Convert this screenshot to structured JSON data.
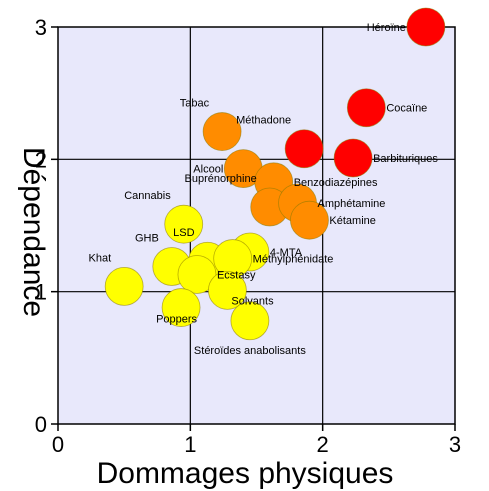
{
  "chart_data": {
    "type": "scatter",
    "xlabel": "Dommages physiques",
    "ylabel": "Dépendance",
    "xlim": [
      0,
      3
    ],
    "ylim": [
      0,
      3
    ],
    "xticks": [
      "0",
      "1",
      "2",
      "3"
    ],
    "yticks": [
      "0",
      "1",
      "2",
      "3"
    ],
    "grid": true,
    "plot_background": "#e8e8fb",
    "colors": {
      "red": "#ff0000",
      "orange": "#ff8c00",
      "yellow": "#ffff00"
    },
    "points": [
      {
        "label": "Héroïne",
        "x": 2.78,
        "y": 3.0,
        "color": "red",
        "anchor": "left"
      },
      {
        "label": "Cocaïne",
        "x": 2.33,
        "y": 2.39,
        "color": "red",
        "anchor": "right"
      },
      {
        "label": "Barbituriques",
        "x": 2.23,
        "y": 2.01,
        "color": "red",
        "anchor": "right"
      },
      {
        "label": "Méthadone",
        "x": 1.86,
        "y": 2.08,
        "color": "red",
        "anchor": "above-left"
      },
      {
        "label": "Tabac",
        "x": 1.24,
        "y": 2.21,
        "color": "orange",
        "anchor": "above-left"
      },
      {
        "label": "Alcool",
        "x": 1.4,
        "y": 1.93,
        "color": "orange",
        "anchor": "left"
      },
      {
        "label": "Benzodiazépines",
        "x": 1.63,
        "y": 1.83,
        "color": "orange",
        "anchor": "right"
      },
      {
        "label": "Buprénorphine",
        "x": 1.6,
        "y": 1.64,
        "color": "orange",
        "anchor": "above-left"
      },
      {
        "label": "Amphétamine",
        "x": 1.81,
        "y": 1.67,
        "color": "orange",
        "anchor": "right"
      },
      {
        "label": "Kétamine",
        "x": 1.9,
        "y": 1.54,
        "color": "orange",
        "anchor": "right"
      },
      {
        "label": "Cannabis",
        "x": 0.95,
        "y": 1.51,
        "color": "yellow",
        "anchor": "above-left"
      },
      {
        "label": "LSD",
        "x": 1.13,
        "y": 1.23,
        "color": "yellow",
        "anchor": "above-left"
      },
      {
        "label": "4-MTA",
        "x": 1.45,
        "y": 1.3,
        "color": "yellow",
        "anchor": "right"
      },
      {
        "label": "Méthylphénidate",
        "x": 1.32,
        "y": 1.25,
        "color": "yellow",
        "anchor": "right"
      },
      {
        "label": "GHB",
        "x": 0.86,
        "y": 1.19,
        "color": "yellow",
        "anchor": "above-left"
      },
      {
        "label": "Ecstasy",
        "x": 1.05,
        "y": 1.13,
        "color": "yellow",
        "anchor": "right"
      },
      {
        "label": "Khat",
        "x": 0.5,
        "y": 1.04,
        "color": "yellow",
        "anchor": "above-left"
      },
      {
        "label": "Solvants",
        "x": 1.28,
        "y": 1.01,
        "color": "yellow",
        "anchor": "below-right"
      },
      {
        "label": "Poppers",
        "x": 0.93,
        "y": 0.88,
        "color": "yellow",
        "anchor": "below-left"
      },
      {
        "label": "Stéroïdes anabolisants",
        "x": 1.45,
        "y": 0.78,
        "color": "yellow",
        "anchor": "below"
      }
    ]
  }
}
